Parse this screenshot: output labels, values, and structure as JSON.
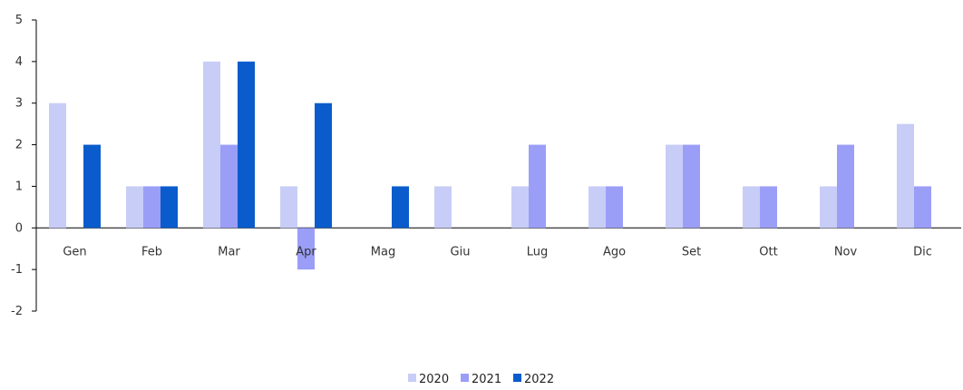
{
  "chart_data": {
    "type": "bar",
    "categories": [
      "Gen",
      "Feb",
      "Mar",
      "Apr",
      "Mag",
      "Giu",
      "Lug",
      "Ago",
      "Set",
      "Ott",
      "Nov",
      "Dic"
    ],
    "series": [
      {
        "name": "2020",
        "color": "#c8cdf7",
        "values": [
          3,
          1,
          4,
          1,
          0,
          1,
          1,
          1,
          2,
          1,
          1,
          2.5
        ]
      },
      {
        "name": "2021",
        "color": "#9b9ef7",
        "values": [
          0,
          1,
          2,
          -1,
          0,
          0,
          2,
          1,
          2,
          1,
          2,
          1
        ]
      },
      {
        "name": "2022",
        "color": "#0a5ccc",
        "values": [
          2,
          1,
          4,
          3,
          1,
          0,
          0,
          0,
          0,
          0,
          0,
          0
        ]
      }
    ],
    "yticks": [
      "5",
      "4",
      "3",
      "2",
      "1",
      "0",
      "-1",
      "-2"
    ],
    "ylim": [
      -2,
      5
    ],
    "title": "",
    "xlabel": "",
    "ylabel": "",
    "legend_position": "bottom",
    "grid": false
  }
}
